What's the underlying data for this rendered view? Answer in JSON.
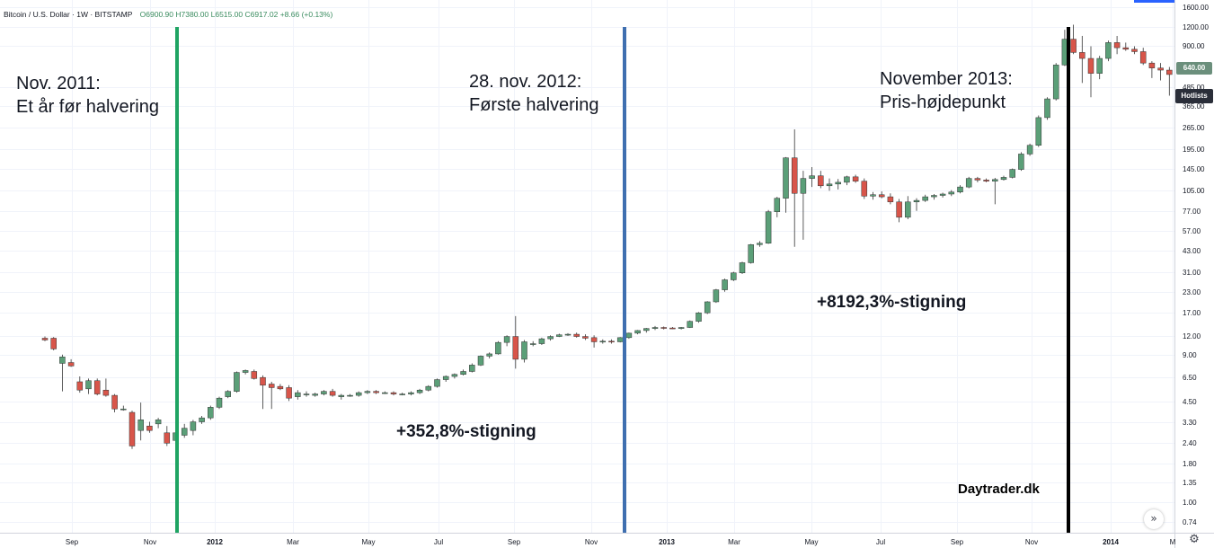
{
  "header": {
    "symbol": "Bitcoin / U.S. Dollar · 1W · BITSTAMP",
    "open": "O6900.90",
    "high": "H7380.00",
    "low": "L6515.00",
    "close": "C6917.02",
    "change": "+8.66 (+0.13%)"
  },
  "annotations": {
    "nov2011_line1": "Nov. 2011:",
    "nov2011_line2": "Et år før halvering",
    "halving_line1": "28. nov. 2012:",
    "halving_line2": "Første halvering",
    "peak_line1": "November 2013:",
    "peak_line2": "Pris-højdepunkt",
    "gain1": "+352,8%-stigning",
    "gain2": "+8192,3%-stigning",
    "brand": "Daytrader.dk"
  },
  "price_badge": "640.00",
  "hotlists_label": "Hotlists",
  "scroll_icon": "double-chevron-right-icon",
  "settings_icon": "gear-icon",
  "colors": {
    "up": "#5b9f78",
    "down": "#d8554a",
    "green_line": "#1fa463",
    "blue_line": "#3f6fb0",
    "black_line": "#000000",
    "grid": "#f0f3fa"
  },
  "chart_data": {
    "type": "candlestick",
    "title": "Bitcoin / U.S. Dollar · 1W · BITSTAMP",
    "y_scale": "log",
    "y_ticks": [
      "0.74",
      "1.00",
      "1.35",
      "1.80",
      "2.40",
      "3.30",
      "4.50",
      "6.50",
      "9.00",
      "12.00",
      "17.00",
      "23.00",
      "31.00",
      "43.00",
      "57.00",
      "77.00",
      "105.00",
      "145.00",
      "195.00",
      "265.00",
      "365.00",
      "485.00",
      "900.00",
      "1200.00",
      "1600.00"
    ],
    "x_ticks": [
      "Sep",
      "Nov",
      "2012",
      "Mar",
      "May",
      "Jul",
      "Sep",
      "Nov",
      "2013",
      "Mar",
      "May",
      "Jul",
      "Sep",
      "Nov",
      "2014",
      "M"
    ],
    "vertical_markers": [
      {
        "label": "Nov. 2011",
        "color": "green"
      },
      {
        "label": "28. nov. 2012",
        "color": "blue"
      },
      {
        "label": "November 2013",
        "color": "black"
      }
    ],
    "candles": [
      {
        "o": 11.5,
        "h": 11.8,
        "l": 11.0,
        "c": 11.2
      },
      {
        "o": 11.5,
        "h": 11.7,
        "l": 9.6,
        "c": 9.8
      },
      {
        "o": 7.9,
        "h": 9.0,
        "l": 5.2,
        "c": 8.7
      },
      {
        "o": 8.0,
        "h": 8.4,
        "l": 7.5,
        "c": 7.6
      },
      {
        "o": 6.0,
        "h": 6.5,
        "l": 5.1,
        "c": 5.3
      },
      {
        "o": 5.4,
        "h": 6.3,
        "l": 5.0,
        "c": 6.1
      },
      {
        "o": 6.1,
        "h": 6.3,
        "l": 4.9,
        "c": 5.0
      },
      {
        "o": 5.3,
        "h": 6.3,
        "l": 4.8,
        "c": 4.9
      },
      {
        "o": 4.9,
        "h": 5.0,
        "l": 3.8,
        "c": 4.0
      },
      {
        "o": 4.0,
        "h": 4.2,
        "l": 3.9,
        "c": 4.0
      },
      {
        "o": 3.8,
        "h": 3.9,
        "l": 2.2,
        "c": 2.3
      },
      {
        "o": 2.9,
        "h": 4.4,
        "l": 2.5,
        "c": 3.4
      },
      {
        "o": 3.1,
        "h": 3.3,
        "l": 2.8,
        "c": 2.9
      },
      {
        "o": 3.2,
        "h": 3.5,
        "l": 3.0,
        "c": 3.4
      },
      {
        "o": 2.8,
        "h": 3.1,
        "l": 2.3,
        "c": 2.4
      },
      {
        "o": 2.5,
        "h": 15.0,
        "l": 2.2,
        "c": 2.8
      },
      {
        "o": 2.7,
        "h": 3.2,
        "l": 2.6,
        "c": 3.0
      },
      {
        "o": 2.9,
        "h": 3.4,
        "l": 2.7,
        "c": 3.3
      },
      {
        "o": 3.3,
        "h": 3.6,
        "l": 3.2,
        "c": 3.5
      },
      {
        "o": 3.5,
        "h": 4.2,
        "l": 3.4,
        "c": 4.1
      },
      {
        "o": 4.1,
        "h": 4.8,
        "l": 4.0,
        "c": 4.7
      },
      {
        "o": 4.8,
        "h": 5.3,
        "l": 4.7,
        "c": 5.2
      },
      {
        "o": 5.2,
        "h": 7.0,
        "l": 5.1,
        "c": 6.9
      },
      {
        "o": 6.9,
        "h": 7.2,
        "l": 6.7,
        "c": 7.1
      },
      {
        "o": 7.0,
        "h": 7.2,
        "l": 6.2,
        "c": 6.3
      },
      {
        "o": 6.4,
        "h": 6.6,
        "l": 4.0,
        "c": 5.7
      },
      {
        "o": 5.8,
        "h": 6.0,
        "l": 4.0,
        "c": 5.5
      },
      {
        "o": 5.6,
        "h": 5.8,
        "l": 5.3,
        "c": 5.4
      },
      {
        "o": 5.5,
        "h": 5.7,
        "l": 4.5,
        "c": 4.7
      },
      {
        "o": 4.8,
        "h": 5.3,
        "l": 4.6,
        "c": 5.1
      },
      {
        "o": 5.0,
        "h": 5.2,
        "l": 4.8,
        "c": 5.0
      },
      {
        "o": 4.9,
        "h": 5.1,
        "l": 4.8,
        "c": 5.0
      },
      {
        "o": 5.0,
        "h": 5.3,
        "l": 4.9,
        "c": 5.2
      },
      {
        "o": 5.2,
        "h": 5.4,
        "l": 4.8,
        "c": 4.9
      },
      {
        "o": 4.8,
        "h": 5.0,
        "l": 4.6,
        "c": 4.9
      },
      {
        "o": 4.9,
        "h": 5.0,
        "l": 4.8,
        "c": 4.9
      },
      {
        "o": 4.9,
        "h": 5.2,
        "l": 4.8,
        "c": 5.1
      },
      {
        "o": 5.1,
        "h": 5.3,
        "l": 5.0,
        "c": 5.2
      },
      {
        "o": 5.2,
        "h": 5.3,
        "l": 5.0,
        "c": 5.1
      },
      {
        "o": 5.1,
        "h": 5.2,
        "l": 5.0,
        "c": 5.1
      },
      {
        "o": 5.1,
        "h": 5.2,
        "l": 4.9,
        "c": 5.0
      },
      {
        "o": 5.0,
        "h": 5.1,
        "l": 4.9,
        "c": 5.0
      },
      {
        "o": 5.0,
        "h": 5.2,
        "l": 4.9,
        "c": 5.1
      },
      {
        "o": 5.1,
        "h": 5.4,
        "l": 5.0,
        "c": 5.3
      },
      {
        "o": 5.3,
        "h": 5.7,
        "l": 5.2,
        "c": 5.6
      },
      {
        "o": 5.6,
        "h": 6.3,
        "l": 5.5,
        "c": 6.2
      },
      {
        "o": 6.2,
        "h": 6.6,
        "l": 6.0,
        "c": 6.5
      },
      {
        "o": 6.5,
        "h": 6.8,
        "l": 6.3,
        "c": 6.7
      },
      {
        "o": 6.7,
        "h": 7.2,
        "l": 6.6,
        "c": 7.0
      },
      {
        "o": 7.0,
        "h": 7.9,
        "l": 6.9,
        "c": 7.7
      },
      {
        "o": 7.7,
        "h": 8.9,
        "l": 7.6,
        "c": 8.8
      },
      {
        "o": 8.8,
        "h": 9.3,
        "l": 8.5,
        "c": 9.1
      },
      {
        "o": 9.1,
        "h": 11.0,
        "l": 9.0,
        "c": 10.8
      },
      {
        "o": 10.8,
        "h": 12.0,
        "l": 10.2,
        "c": 11.8
      },
      {
        "o": 11.8,
        "h": 16.0,
        "l": 7.3,
        "c": 8.4
      },
      {
        "o": 8.4,
        "h": 11.2,
        "l": 8.0,
        "c": 10.9
      },
      {
        "o": 10.5,
        "h": 11.0,
        "l": 10.2,
        "c": 10.6
      },
      {
        "o": 10.6,
        "h": 11.6,
        "l": 10.4,
        "c": 11.4
      },
      {
        "o": 11.4,
        "h": 12.0,
        "l": 11.1,
        "c": 11.8
      },
      {
        "o": 11.8,
        "h": 12.3,
        "l": 11.7,
        "c": 12.1
      },
      {
        "o": 12.1,
        "h": 12.4,
        "l": 11.9,
        "c": 12.2
      },
      {
        "o": 12.2,
        "h": 12.5,
        "l": 11.6,
        "c": 11.8
      },
      {
        "o": 11.8,
        "h": 12.2,
        "l": 11.2,
        "c": 11.5
      },
      {
        "o": 11.6,
        "h": 12.0,
        "l": 10.0,
        "c": 10.9
      },
      {
        "o": 10.9,
        "h": 11.3,
        "l": 10.6,
        "c": 11.0
      },
      {
        "o": 11.0,
        "h": 11.3,
        "l": 10.6,
        "c": 10.9
      },
      {
        "o": 10.9,
        "h": 11.7,
        "l": 10.8,
        "c": 11.6
      },
      {
        "o": 11.6,
        "h": 12.5,
        "l": 11.4,
        "c": 12.4
      },
      {
        "o": 12.4,
        "h": 13.0,
        "l": 12.2,
        "c": 12.9
      },
      {
        "o": 12.9,
        "h": 13.4,
        "l": 12.5,
        "c": 13.3
      },
      {
        "o": 13.3,
        "h": 13.8,
        "l": 13.0,
        "c": 13.5
      },
      {
        "o": 13.5,
        "h": 13.7,
        "l": 13.1,
        "c": 13.4
      },
      {
        "o": 13.4,
        "h": 13.6,
        "l": 13.2,
        "c": 13.3
      },
      {
        "o": 13.3,
        "h": 13.6,
        "l": 13.1,
        "c": 13.5
      },
      {
        "o": 13.5,
        "h": 15.0,
        "l": 13.4,
        "c": 14.8
      },
      {
        "o": 14.8,
        "h": 17.0,
        "l": 14.5,
        "c": 16.8
      },
      {
        "o": 16.8,
        "h": 20.0,
        "l": 16.5,
        "c": 19.8
      },
      {
        "o": 19.8,
        "h": 24.0,
        "l": 19.5,
        "c": 23.7
      },
      {
        "o": 23.7,
        "h": 28.0,
        "l": 23.0,
        "c": 27.5
      },
      {
        "o": 27.5,
        "h": 31.0,
        "l": 27.0,
        "c": 30.5
      },
      {
        "o": 30.5,
        "h": 36.0,
        "l": 30.0,
        "c": 35.5
      },
      {
        "o": 35.5,
        "h": 47.0,
        "l": 35.0,
        "c": 46.5
      },
      {
        "o": 46.5,
        "h": 49.0,
        "l": 45.0,
        "c": 47.5
      },
      {
        "o": 47.5,
        "h": 78.0,
        "l": 47.0,
        "c": 76.0
      },
      {
        "o": 76.0,
        "h": 95.0,
        "l": 70.0,
        "c": 93.0
      },
      {
        "o": 93.0,
        "h": 172.0,
        "l": 75.0,
        "c": 170.0
      },
      {
        "o": 170.0,
        "h": 260.0,
        "l": 45.0,
        "c": 100.0
      },
      {
        "o": 100.0,
        "h": 140.0,
        "l": 50.0,
        "c": 125.0
      },
      {
        "o": 125.0,
        "h": 148.0,
        "l": 110.0,
        "c": 130.0
      },
      {
        "o": 130.0,
        "h": 140.0,
        "l": 108.0,
        "c": 112.0
      },
      {
        "o": 112.0,
        "h": 125.0,
        "l": 104.0,
        "c": 115.0
      },
      {
        "o": 115.0,
        "h": 124.0,
        "l": 106.0,
        "c": 118.0
      },
      {
        "o": 118.0,
        "h": 130.0,
        "l": 113.0,
        "c": 128.0
      },
      {
        "o": 128.0,
        "h": 132.0,
        "l": 117.0,
        "c": 120.0
      },
      {
        "o": 120.0,
        "h": 125.0,
        "l": 92.0,
        "c": 96.0
      },
      {
        "o": 96.0,
        "h": 102.0,
        "l": 91.0,
        "c": 98.0
      },
      {
        "o": 98.0,
        "h": 103.0,
        "l": 93.0,
        "c": 95.0
      },
      {
        "o": 95.0,
        "h": 100.0,
        "l": 85.0,
        "c": 88.0
      },
      {
        "o": 88.0,
        "h": 92.0,
        "l": 65.0,
        "c": 70.0
      },
      {
        "o": 70.0,
        "h": 96.0,
        "l": 68.0,
        "c": 88.0
      },
      {
        "o": 88.0,
        "h": 93.0,
        "l": 77.0,
        "c": 90.0
      },
      {
        "o": 90.0,
        "h": 98.0,
        "l": 88.0,
        "c": 95.0
      },
      {
        "o": 95.0,
        "h": 99.0,
        "l": 91.0,
        "c": 97.0
      },
      {
        "o": 97.0,
        "h": 101.0,
        "l": 94.0,
        "c": 99.0
      },
      {
        "o": 99.0,
        "h": 105.0,
        "l": 96.0,
        "c": 102.0
      },
      {
        "o": 102.0,
        "h": 113.0,
        "l": 100.0,
        "c": 110.0
      },
      {
        "o": 110.0,
        "h": 128.0,
        "l": 108.0,
        "c": 125.0
      },
      {
        "o": 125.0,
        "h": 128.0,
        "l": 118.0,
        "c": 122.0
      },
      {
        "o": 122.0,
        "h": 125.0,
        "l": 118.0,
        "c": 120.0
      },
      {
        "o": 120.0,
        "h": 126.0,
        "l": 85.0,
        "c": 123.0
      },
      {
        "o": 123.0,
        "h": 130.0,
        "l": 121.0,
        "c": 127.0
      },
      {
        "o": 127.0,
        "h": 145.0,
        "l": 125.0,
        "c": 143.0
      },
      {
        "o": 143.0,
        "h": 185.0,
        "l": 140.0,
        "c": 180.0
      },
      {
        "o": 180.0,
        "h": 210.0,
        "l": 175.0,
        "c": 205.0
      },
      {
        "o": 205.0,
        "h": 320.0,
        "l": 200.0,
        "c": 310.0
      },
      {
        "o": 310.0,
        "h": 420.0,
        "l": 300.0,
        "c": 410.0
      },
      {
        "o": 410.0,
        "h": 700.0,
        "l": 400.0,
        "c": 680.0
      },
      {
        "o": 680.0,
        "h": 1150.0,
        "l": 670.0,
        "c": 1000.0
      },
      {
        "o": 1000.0,
        "h": 1240.0,
        "l": 800.0,
        "c": 820.0
      },
      {
        "o": 820.0,
        "h": 1050.0,
        "l": 520.0,
        "c": 750.0
      },
      {
        "o": 750.0,
        "h": 900.0,
        "l": 420.0,
        "c": 600.0
      },
      {
        "o": 600.0,
        "h": 780.0,
        "l": 550.0,
        "c": 750.0
      },
      {
        "o": 750.0,
        "h": 980.0,
        "l": 720.0,
        "c": 950.0
      },
      {
        "o": 950.0,
        "h": 1050.0,
        "l": 800.0,
        "c": 880.0
      },
      {
        "o": 880.0,
        "h": 950.0,
        "l": 840.0,
        "c": 860.0
      },
      {
        "o": 860.0,
        "h": 900.0,
        "l": 800.0,
        "c": 830.0
      },
      {
        "o": 830.0,
        "h": 880.0,
        "l": 680.0,
        "c": 700.0
      },
      {
        "o": 700.0,
        "h": 720.0,
        "l": 560.0,
        "c": 650.0
      },
      {
        "o": 650.0,
        "h": 700.0,
        "l": 540.0,
        "c": 630.0
      },
      {
        "o": 630.0,
        "h": 660.0,
        "l": 430.0,
        "c": 590.0
      }
    ]
  }
}
